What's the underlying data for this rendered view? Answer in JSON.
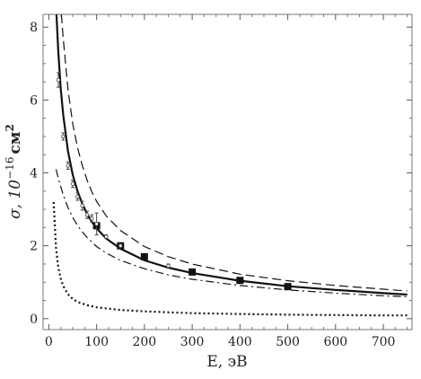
{
  "chart_data": {
    "type": "scatter",
    "xlabel": "E, эВ",
    "ylabel_main": "σ, 10",
    "ylabel_exp": "−16",
    "ylabel_unit": "см",
    "ylabel_unit_exp": "2",
    "xlim": [
      -12,
      760
    ],
    "ylim": [
      -0.3,
      8.35
    ],
    "xticks": [
      0,
      100,
      200,
      300,
      400,
      500,
      600,
      700
    ],
    "yticks": [
      0,
      2,
      4,
      6,
      8
    ],
    "grid": false,
    "legend": "none",
    "series": [
      {
        "style": "solid",
        "x": [
          15,
          20,
          25,
          30,
          40,
          50,
          60,
          70,
          80,
          90,
          100,
          120,
          150,
          200,
          250,
          300,
          400,
          500,
          600,
          700,
          750
        ],
        "y": [
          8.6,
          7.3,
          6.3,
          5.6,
          4.6,
          3.95,
          3.5,
          3.15,
          2.88,
          2.66,
          2.48,
          2.2,
          1.92,
          1.6,
          1.4,
          1.25,
          1.04,
          0.89,
          0.79,
          0.7,
          0.66
        ]
      },
      {
        "style": "dashed",
        "x": [
          25,
          30,
          40,
          50,
          60,
          70,
          80,
          90,
          100,
          120,
          150,
          200,
          250,
          300,
          400,
          500,
          600,
          700,
          750
        ],
        "y": [
          8.6,
          7.7,
          6.3,
          5.35,
          4.7,
          4.2,
          3.8,
          3.48,
          3.22,
          2.82,
          2.42,
          1.98,
          1.7,
          1.5,
          1.22,
          1.04,
          0.91,
          0.81,
          0.76
        ]
      },
      {
        "style": "dash-dot",
        "x": [
          15,
          20,
          30,
          40,
          50,
          60,
          70,
          80,
          90,
          100,
          120,
          150,
          200,
          250,
          300,
          400,
          500,
          600,
          700,
          750
        ],
        "y": [
          4.1,
          3.85,
          3.4,
          3.05,
          2.78,
          2.56,
          2.38,
          2.23,
          2.1,
          1.98,
          1.8,
          1.6,
          1.37,
          1.2,
          1.08,
          0.91,
          0.79,
          0.7,
          0.63,
          0.6
        ]
      },
      {
        "style": "dotted",
        "x": [
          10,
          12,
          15,
          20,
          25,
          30,
          40,
          50,
          60,
          80,
          100,
          150,
          200,
          300,
          400,
          500,
          600,
          700,
          750
        ],
        "y": [
          3.2,
          2.7,
          1.95,
          1.4,
          1.1,
          0.9,
          0.67,
          0.54,
          0.46,
          0.37,
          0.31,
          0.24,
          0.2,
          0.15,
          0.13,
          0.11,
          0.1,
          0.09,
          0.09
        ]
      },
      {
        "style": "filled-squares",
        "x": [
          100,
          150,
          200,
          300,
          400,
          500
        ],
        "y": [
          2.55,
          2.0,
          1.7,
          1.28,
          1.05,
          0.88
        ]
      },
      {
        "style": "open-circles-errorbars",
        "x": [
          20,
          30,
          40,
          50,
          60,
          70,
          80,
          90,
          100,
          120,
          150,
          250
        ],
        "y": [
          6.55,
          5.0,
          4.2,
          3.7,
          3.35,
          3.1,
          2.85,
          2.75,
          2.6,
          2.25,
          2.0,
          1.45
        ],
        "err": [
          0.2,
          0.1,
          0.1,
          0.1,
          0.1,
          0.12,
          0.1,
          0.1,
          0.3,
          0.05,
          0.05,
          0.05
        ]
      }
    ]
  }
}
